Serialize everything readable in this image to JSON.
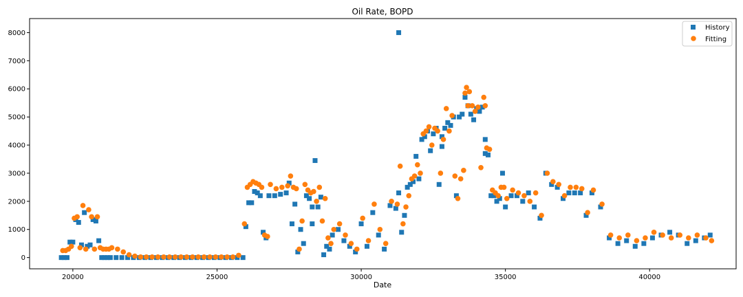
{
  "chart_data": {
    "type": "scatter",
    "title": "Oil Rate, BOPD",
    "xlabel": "Date",
    "ylabel": "",
    "xlim": [
      18500,
      43000
    ],
    "ylim": [
      -400,
      8500
    ],
    "x_ticks": [
      20000,
      25000,
      30000,
      35000,
      40000
    ],
    "y_ticks": [
      0,
      1000,
      2000,
      3000,
      4000,
      5000,
      6000,
      7000,
      8000
    ],
    "grid": false,
    "legend_position": "top-right",
    "series": [
      {
        "name": "History",
        "marker": "square",
        "color": "#1f77b4",
        "x": [
          19600,
          19700,
          19800,
          19900,
          20000,
          20100,
          20200,
          20300,
          20400,
          20500,
          20600,
          20700,
          20800,
          20900,
          21000,
          21100,
          21200,
          21300,
          21500,
          21700,
          21900,
          22100,
          22300,
          22500,
          22700,
          22900,
          23100,
          23300,
          23500,
          23700,
          23900,
          24100,
          24300,
          24500,
          24700,
          24900,
          25100,
          25300,
          25500,
          25700,
          25900,
          26000,
          26100,
          26200,
          26300,
          26400,
          26500,
          26600,
          26700,
          26800,
          27000,
          27200,
          27400,
          27500,
          27600,
          27700,
          27800,
          27900,
          28000,
          28100,
          28200,
          28300,
          28400,
          28500,
          28600,
          28700,
          28800,
          28900,
          29000,
          29200,
          29400,
          29600,
          29800,
          30000,
          30200,
          30400,
          30600,
          30800,
          31000,
          31200,
          31300,
          31400,
          31500,
          31600,
          31700,
          31800,
          31900,
          32000,
          32100,
          32200,
          32300,
          32400,
          32500,
          32600,
          32700,
          32800,
          32900,
          33000,
          33100,
          33200,
          33300,
          33400,
          33500,
          33600,
          33700,
          33800,
          33900,
          34000,
          34100,
          34200,
          34300,
          34400,
          34500,
          34600,
          34700,
          34800,
          34900,
          35000,
          35200,
          35400,
          35600,
          35800,
          36000,
          36200,
          36400,
          36600,
          36800,
          37000,
          37200,
          37400,
          37600,
          37800,
          38000,
          38300,
          38600,
          38900,
          39200,
          39500,
          39800,
          40100,
          40400,
          40700,
          41000,
          41300,
          41600,
          41900,
          42100,
          31300,
          28300,
          32800,
          34300
        ],
        "y": [
          0,
          0,
          0,
          550,
          550,
          1350,
          1250,
          450,
          1600,
          400,
          450,
          1350,
          1300,
          600,
          0,
          0,
          0,
          0,
          0,
          0,
          0,
          0,
          0,
          0,
          0,
          0,
          0,
          0,
          0,
          0,
          0,
          0,
          0,
          0,
          0,
          0,
          0,
          0,
          0,
          0,
          0,
          1100,
          1950,
          1950,
          2350,
          2300,
          2200,
          900,
          700,
          2200,
          2200,
          2250,
          2300,
          2650,
          1200,
          1900,
          200,
          1000,
          500,
          2200,
          2100,
          1800,
          3450,
          1800,
          2150,
          100,
          400,
          300,
          800,
          1000,
          600,
          400,
          200,
          1200,
          400,
          1600,
          800,
          300,
          1850,
          1750,
          2300,
          900,
          1500,
          2500,
          2600,
          2700,
          3600,
          2800,
          4200,
          4300,
          4500,
          3800,
          4400,
          4600,
          2600,
          3950,
          4600,
          4800,
          4700,
          5000,
          2200,
          5000,
          5100,
          5700,
          5400,
          5100,
          4900,
          5300,
          5200,
          5350,
          3700,
          3650,
          2200,
          2200,
          2000,
          2100,
          3000,
          1800,
          2200,
          2200,
          2000,
          2300,
          1800,
          1400,
          3000,
          2600,
          2500,
          2100,
          2300,
          2300,
          2300,
          1500,
          2300,
          1800,
          700,
          500,
          600,
          400,
          500,
          700,
          800,
          900,
          800,
          500,
          600,
          700,
          800,
          8000,
          1200,
          4300,
          4200
        ]
      },
      {
        "name": "Fitting",
        "marker": "circle",
        "color": "#ff7f0e",
        "x": [
          19650,
          19750,
          19850,
          19950,
          20050,
          20150,
          20250,
          20350,
          20450,
          20550,
          20650,
          20750,
          20850,
          20950,
          21050,
          21150,
          21250,
          21350,
          21550,
          21750,
          21950,
          22150,
          22350,
          22550,
          22750,
          22950,
          23150,
          23350,
          23550,
          23750,
          23950,
          24150,
          24350,
          24550,
          24750,
          24950,
          25150,
          25350,
          25550,
          25750,
          25950,
          26050,
          26150,
          26250,
          26350,
          26450,
          26550,
          26650,
          26750,
          26850,
          27050,
          27250,
          27450,
          27550,
          27650,
          27750,
          27850,
          27950,
          28050,
          28150,
          28250,
          28350,
          28450,
          28550,
          28650,
          28750,
          28850,
          28950,
          29050,
          29250,
          29450,
          29650,
          29850,
          30050,
          30250,
          30450,
          30650,
          30850,
          31050,
          31250,
          31350,
          31450,
          31550,
          31650,
          31750,
          31850,
          31950,
          32050,
          32150,
          32250,
          32350,
          32450,
          32550,
          32650,
          32750,
          32850,
          32950,
          33050,
          33150,
          33250,
          33350,
          33450,
          33550,
          33650,
          33750,
          33850,
          33950,
          34050,
          34150,
          34250,
          34350,
          34450,
          34550,
          34650,
          34750,
          34850,
          34950,
          35050,
          35250,
          35450,
          35650,
          35850,
          36050,
          36250,
          36450,
          36650,
          36850,
          37050,
          37250,
          37450,
          37650,
          37850,
          38050,
          38350,
          38650,
          38950,
          39250,
          39550,
          39850,
          40150,
          40450,
          40750,
          41050,
          41350,
          41650,
          41950,
          42150,
          33600,
          33700,
          34300
        ],
        "y": [
          250,
          250,
          300,
          400,
          1400,
          1450,
          350,
          1850,
          300,
          1700,
          1450,
          300,
          1450,
          350,
          300,
          300,
          300,
          350,
          300,
          200,
          100,
          50,
          20,
          20,
          20,
          20,
          20,
          20,
          20,
          20,
          20,
          20,
          20,
          20,
          20,
          20,
          20,
          20,
          20,
          80,
          1200,
          2500,
          2600,
          2700,
          2650,
          2600,
          2500,
          800,
          750,
          2600,
          2450,
          2500,
          2550,
          2900,
          2500,
          2450,
          300,
          1300,
          2600,
          2400,
          2300,
          2350,
          2000,
          2500,
          1300,
          2100,
          700,
          500,
          1000,
          1200,
          800,
          500,
          300,
          1400,
          600,
          1900,
          1000,
          500,
          2000,
          1900,
          3250,
          1200,
          1800,
          2200,
          2800,
          2900,
          3300,
          3000,
          4400,
          4500,
          4650,
          4000,
          4600,
          4500,
          3000,
          4200,
          5300,
          4500,
          5050,
          2900,
          2100,
          2800,
          3100,
          6050,
          5900,
          5400,
          5200,
          5350,
          3200,
          5700,
          3900,
          3850,
          2400,
          2300,
          2200,
          2500,
          2500,
          2100,
          2400,
          2300,
          2200,
          2000,
          2300,
          1500,
          3000,
          2700,
          2600,
          2200,
          2500,
          2500,
          2450,
          1600,
          2400,
          1900,
          800,
          700,
          800,
          600,
          700,
          900,
          800,
          700,
          800,
          700,
          800,
          700,
          600,
          5850,
          5400,
          5400
        ]
      }
    ]
  }
}
